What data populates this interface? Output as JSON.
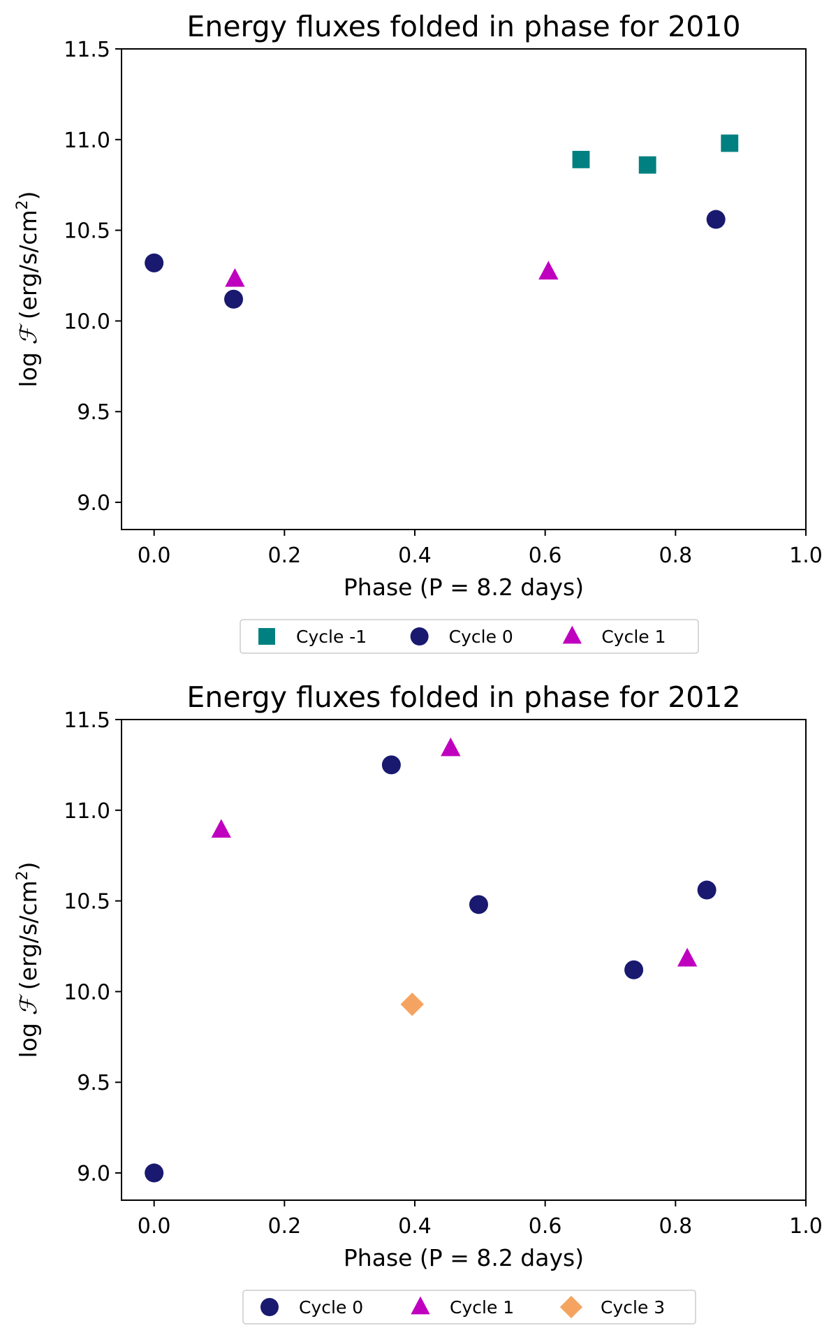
{
  "chart_data": [
    {
      "type": "scatter",
      "title": "Energy fluxes folded in phase for 2010",
      "xlabel": "Phase (P = 8.2 days)",
      "ylabel": {
        "prefix": "log ",
        "symbol": "ℱ",
        "unit": " (erg/s/cm",
        "sup": "2",
        "close": ")"
      },
      "xlim": [
        -0.05,
        1.0
      ],
      "ylim": [
        8.85,
        11.5
      ],
      "xticks": [
        0.0,
        0.2,
        0.4,
        0.6,
        0.8,
        1.0
      ],
      "xtick_labels": [
        "0.0",
        "0.2",
        "0.4",
        "0.6",
        "0.8",
        "1.0"
      ],
      "yticks": [
        9.0,
        9.5,
        10.0,
        10.5,
        11.0,
        11.5
      ],
      "ytick_labels": [
        "9.0",
        "9.5",
        "10.0",
        "10.5",
        "11.0",
        "11.5"
      ],
      "grid": false,
      "legend_position": "below",
      "series": [
        {
          "name": "Cycle -1",
          "marker": "square",
          "color": "#008080",
          "points": [
            {
              "x": 0.655,
              "y": 10.89
            },
            {
              "x": 0.757,
              "y": 10.86
            },
            {
              "x": 0.883,
              "y": 10.98
            }
          ]
        },
        {
          "name": "Cycle 0",
          "marker": "circle",
          "color": "#191970",
          "points": [
            {
              "x": 0.0,
              "y": 10.32
            },
            {
              "x": 0.122,
              "y": 10.12
            },
            {
              "x": 0.862,
              "y": 10.56
            }
          ]
        },
        {
          "name": "Cycle 1",
          "marker": "triangle",
          "color": "#bf00bf",
          "points": [
            {
              "x": 0.124,
              "y": 10.23
            },
            {
              "x": 0.605,
              "y": 10.27
            }
          ]
        }
      ]
    },
    {
      "type": "scatter",
      "title": "Energy fluxes folded in phase for 2012",
      "xlabel": "Phase (P = 8.2 days)",
      "ylabel": {
        "prefix": "log ",
        "symbol": "ℱ",
        "unit": " (erg/s/cm",
        "sup": "2",
        "close": ")"
      },
      "xlim": [
        -0.05,
        1.0
      ],
      "ylim": [
        8.85,
        11.5
      ],
      "xticks": [
        0.0,
        0.2,
        0.4,
        0.6,
        0.8,
        1.0
      ],
      "xtick_labels": [
        "0.0",
        "0.2",
        "0.4",
        "0.6",
        "0.8",
        "1.0"
      ],
      "yticks": [
        9.0,
        9.5,
        10.0,
        10.5,
        11.0,
        11.5
      ],
      "ytick_labels": [
        "9.0",
        "9.5",
        "10.0",
        "10.5",
        "11.0",
        "11.5"
      ],
      "grid": false,
      "legend_position": "below",
      "series": [
        {
          "name": "Cycle 0",
          "marker": "circle",
          "color": "#191970",
          "points": [
            {
              "x": 0.0,
              "y": 9.0
            },
            {
              "x": 0.364,
              "y": 11.25
            },
            {
              "x": 0.498,
              "y": 10.48
            },
            {
              "x": 0.736,
              "y": 10.12
            },
            {
              "x": 0.848,
              "y": 10.56
            }
          ]
        },
        {
          "name": "Cycle 1",
          "marker": "triangle",
          "color": "#bf00bf",
          "points": [
            {
              "x": 0.103,
              "y": 10.89
            },
            {
              "x": 0.455,
              "y": 11.34
            },
            {
              "x": 0.818,
              "y": 10.18
            }
          ]
        },
        {
          "name": "Cycle 3",
          "marker": "diamond",
          "color": "#f4a460",
          "points": [
            {
              "x": 0.396,
              "y": 9.93
            }
          ]
        }
      ]
    }
  ]
}
